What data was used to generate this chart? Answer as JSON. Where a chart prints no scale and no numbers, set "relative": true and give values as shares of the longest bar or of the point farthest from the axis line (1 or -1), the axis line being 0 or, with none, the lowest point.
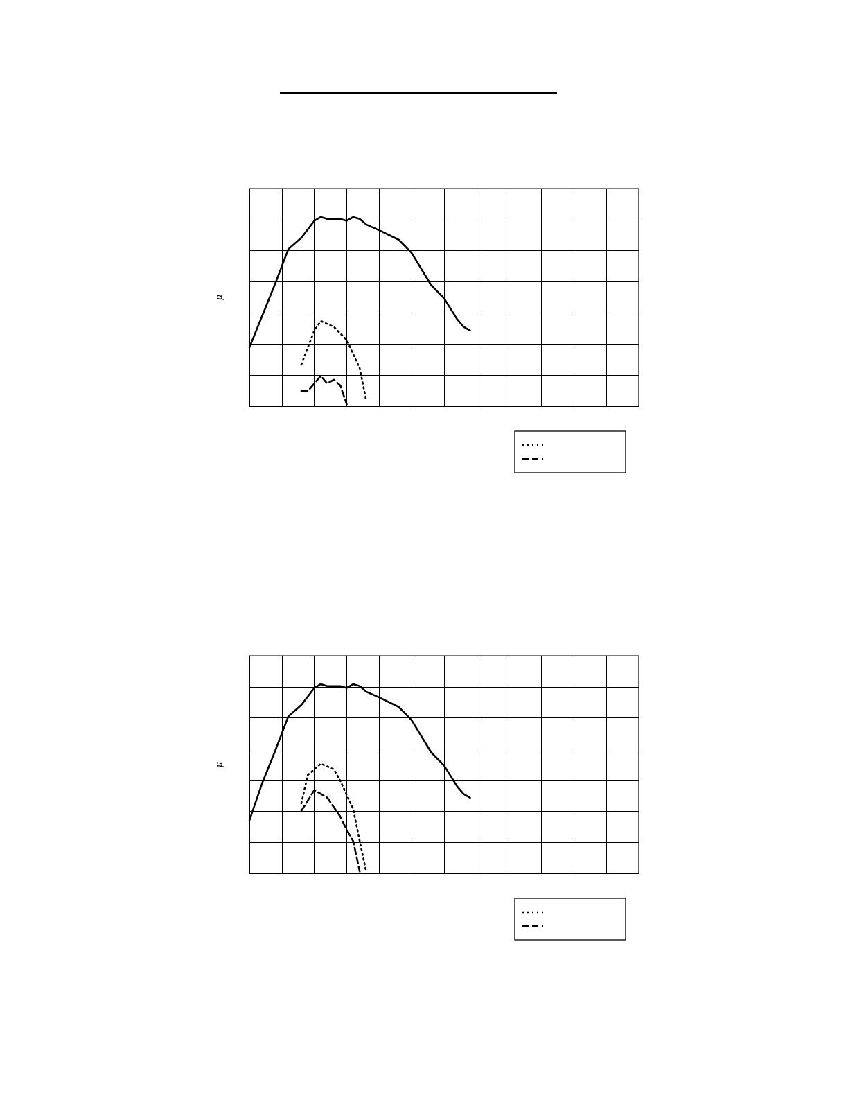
{
  "chart_data": [
    {
      "type": "line",
      "ylabel": "μ",
      "relative": true,
      "grid": true,
      "categories": [
        null,
        null,
        null,
        null,
        null,
        null,
        null,
        null,
        null,
        null,
        null,
        null,
        null,
        null,
        null,
        null,
        null,
        null,
        null,
        null,
        null,
        null,
        null,
        null,
        null,
        null,
        null,
        null,
        null,
        null,
        null,
        null,
        null,
        null,
        null,
        null,
        null,
        null,
        null,
        null,
        null,
        null,
        null,
        null,
        null,
        null,
        null,
        null,
        null,
        null,
        null,
        null,
        null,
        null,
        null,
        null,
        null,
        null,
        null,
        null,
        null
      ],
      "series": [
        {
          "color": "#000000",
          "line_style": "solid",
          "values": [
            0.31,
            null,
            0.48,
            null,
            0.65,
            null,
            0.83,
            null,
            0.89,
            null,
            0.98,
            1,
            0.99,
            null,
            0.99,
            0.98,
            1,
            0.99,
            0.96,
            null,
            0.93,
            null,
            null,
            0.88,
            null,
            0.81,
            null,
            null,
            0.64,
            null,
            0.57,
            null,
            0.46,
            0.42,
            0.4,
            null,
            null,
            null,
            null,
            null,
            null,
            null,
            null,
            null,
            null,
            null,
            null,
            null,
            null,
            null,
            null,
            null,
            null,
            null,
            null,
            null,
            null,
            null,
            null,
            null,
            null
          ]
        },
        {
          "color": "#000000",
          "line_style": "dotted",
          "values": [
            null,
            null,
            null,
            null,
            null,
            null,
            null,
            null,
            0.22,
            null,
            0.4,
            0.45,
            null,
            0.42,
            null,
            0.35,
            null,
            0.2,
            0.03,
            null,
            null,
            null,
            null,
            null,
            null,
            null,
            null,
            null,
            null,
            null,
            null,
            null,
            null,
            null,
            null,
            null,
            null,
            null,
            null,
            null,
            null,
            null,
            null,
            null,
            null,
            null,
            null,
            null,
            null,
            null,
            null,
            null,
            null,
            null,
            null,
            null,
            null,
            null,
            null,
            null,
            null
          ]
        },
        {
          "color": "#000000",
          "line_style": "dashed",
          "values": [
            null,
            null,
            null,
            null,
            null,
            null,
            null,
            null,
            0.08,
            0.08,
            null,
            0.16,
            0.12,
            0.14,
            0.11,
            0.01,
            null,
            null,
            null,
            null,
            null,
            null,
            null,
            null,
            null,
            null,
            null,
            null,
            null,
            null,
            null,
            null,
            null,
            null,
            null,
            null,
            null,
            null,
            null,
            null,
            null,
            null,
            null,
            null,
            null,
            null,
            null,
            null,
            null,
            null,
            null,
            null,
            null,
            null,
            null,
            null,
            null,
            null,
            null,
            null,
            null
          ]
        }
      ]
    },
    {
      "type": "line",
      "ylabel": "μ",
      "relative": true,
      "grid": true,
      "categories": [
        null,
        null,
        null,
        null,
        null,
        null,
        null,
        null,
        null,
        null,
        null,
        null,
        null,
        null,
        null,
        null,
        null,
        null,
        null,
        null,
        null,
        null,
        null,
        null,
        null,
        null,
        null,
        null,
        null,
        null,
        null,
        null,
        null,
        null,
        null,
        null,
        null,
        null,
        null,
        null,
        null,
        null,
        null,
        null,
        null,
        null,
        null,
        null,
        null,
        null,
        null,
        null,
        null,
        null,
        null,
        null,
        null,
        null,
        null,
        null,
        null
      ],
      "series": [
        {
          "color": "#000000",
          "line_style": "solid",
          "values": [
            0.28,
            null,
            0.48,
            null,
            0.65,
            null,
            0.83,
            null,
            0.89,
            null,
            0.98,
            1,
            0.99,
            null,
            0.99,
            0.98,
            1,
            0.99,
            0.96,
            null,
            0.93,
            null,
            null,
            0.88,
            null,
            0.81,
            null,
            null,
            0.64,
            null,
            0.57,
            null,
            0.46,
            0.42,
            0.4,
            null,
            null,
            null,
            null,
            null,
            null,
            null,
            null,
            null,
            null,
            null,
            null,
            null,
            null,
            null,
            null,
            null,
            null,
            null,
            null,
            null,
            null,
            null,
            null,
            null,
            null
          ]
        },
        {
          "color": "#000000",
          "line_style": "dotted",
          "values": [
            null,
            null,
            null,
            null,
            null,
            null,
            null,
            null,
            0.37,
            0.52,
            null,
            0.58,
            null,
            0.55,
            0.49,
            null,
            0.34,
            0.17,
            0.01,
            null,
            null,
            null,
            null,
            null,
            null,
            null,
            null,
            null,
            null,
            null,
            null,
            null,
            null,
            null,
            null,
            null,
            null,
            null,
            null,
            null,
            null,
            null,
            null,
            null,
            null,
            null,
            null,
            null,
            null,
            null,
            null,
            null,
            null,
            null,
            null,
            null,
            null,
            null,
            null,
            null,
            null
          ]
        },
        {
          "color": "#000000",
          "line_style": "dashed",
          "values": [
            null,
            null,
            null,
            null,
            null,
            null,
            null,
            null,
            0.33,
            null,
            0.44,
            null,
            0.4,
            null,
            0.3,
            0.23,
            0.17,
            0.01,
            null,
            null,
            null,
            null,
            null,
            null,
            null,
            null,
            null,
            null,
            null,
            null,
            null,
            null,
            null,
            null,
            null,
            null,
            null,
            null,
            null,
            null,
            null,
            null,
            null,
            null,
            null,
            null,
            null,
            null,
            null,
            null,
            null,
            null,
            null,
            null,
            null,
            null,
            null,
            null,
            null,
            null,
            null
          ]
        }
      ]
    }
  ]
}
